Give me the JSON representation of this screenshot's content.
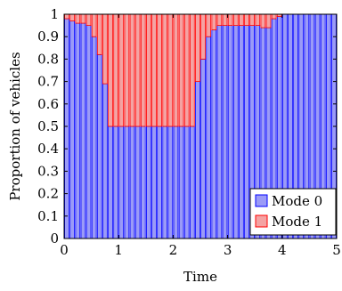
{
  "chart_data": {
    "type": "bar",
    "stacked": true,
    "xlabel": "Time",
    "ylabel": "Proportion of vehicles",
    "xlim": [
      0,
      5
    ],
    "ylim": [
      0,
      1
    ],
    "xticks": [
      "0",
      "1",
      "2",
      "3",
      "4",
      "5"
    ],
    "yticks": [
      "0",
      "0.1",
      "0.2",
      "0.3",
      "0.4",
      "0.5",
      "0.6",
      "0.7",
      "0.8",
      "0.9",
      "1"
    ],
    "grid": false,
    "legend_position": "bottom-right",
    "bar_width": 0.1,
    "x": [
      0.05,
      0.15,
      0.25,
      0.35,
      0.45,
      0.55,
      0.65,
      0.75,
      0.85,
      0.95,
      1.05,
      1.15,
      1.25,
      1.35,
      1.45,
      1.55,
      1.65,
      1.75,
      1.85,
      1.95,
      2.05,
      2.15,
      2.25,
      2.35,
      2.45,
      2.55,
      2.65,
      2.75,
      2.85,
      2.95,
      3.05,
      3.15,
      3.25,
      3.35,
      3.45,
      3.55,
      3.65,
      3.75,
      3.85,
      3.95,
      4.05,
      4.15,
      4.25,
      4.35,
      4.45,
      4.55,
      4.65,
      4.75,
      4.85,
      4.95
    ],
    "series": [
      {
        "name": "Mode 0",
        "color": "#0000ff",
        "fill": "#9b9bf7",
        "values": [
          0.98,
          0.97,
          0.96,
          0.96,
          0.95,
          0.9,
          0.82,
          0.69,
          0.5,
          0.5,
          0.5,
          0.5,
          0.5,
          0.5,
          0.5,
          0.5,
          0.5,
          0.5,
          0.5,
          0.5,
          0.5,
          0.5,
          0.5,
          0.5,
          0.7,
          0.8,
          0.9,
          0.93,
          0.95,
          0.95,
          0.95,
          0.95,
          0.95,
          0.95,
          0.95,
          0.95,
          0.94,
          0.94,
          0.98,
          0.99,
          1.0,
          1.0,
          1.0,
          1.0,
          1.0,
          1.0,
          1.0,
          1.0,
          1.0,
          1.0
        ]
      },
      {
        "name": "Mode 1",
        "color": "#ff0000",
        "fill": "#f4a3a3",
        "values": [
          0.02,
          0.03,
          0.04,
          0.04,
          0.05,
          0.1,
          0.18,
          0.31,
          0.5,
          0.5,
          0.5,
          0.5,
          0.5,
          0.5,
          0.5,
          0.5,
          0.5,
          0.5,
          0.5,
          0.5,
          0.5,
          0.5,
          0.5,
          0.5,
          0.3,
          0.2,
          0.1,
          0.07,
          0.05,
          0.05,
          0.05,
          0.05,
          0.05,
          0.05,
          0.05,
          0.05,
          0.06,
          0.06,
          0.02,
          0.01,
          0.0,
          0.0,
          0.0,
          0.0,
          0.0,
          0.0,
          0.0,
          0.0,
          0.0,
          0.0
        ]
      }
    ]
  }
}
